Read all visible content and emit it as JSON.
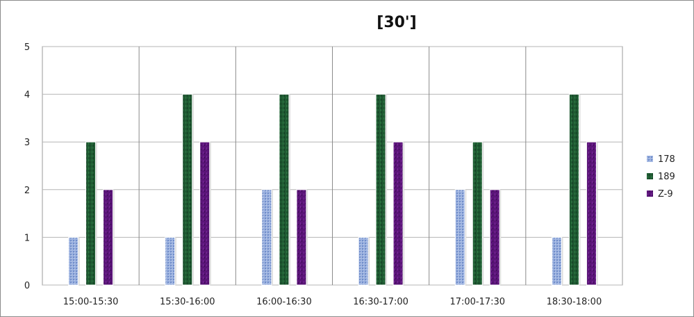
{
  "chart_data": {
    "type": "bar",
    "title": "[30']",
    "categories": [
      "15:00-15:30",
      "15:30-16:00",
      "16:00-16:30",
      "16:30-17:00",
      "17:00-17:30",
      "18:30-18:00"
    ],
    "series": [
      {
        "name": "178",
        "values": [
          1,
          1,
          2,
          1,
          2,
          1
        ],
        "color": "#8fa8d8"
      },
      {
        "name": "189",
        "values": [
          3,
          4,
          4,
          4,
          3,
          4
        ],
        "color": "#1f5a32"
      },
      {
        "name": "Z-9",
        "values": [
          2,
          3,
          2,
          3,
          2,
          3
        ],
        "color": "#5a1478"
      }
    ],
    "ylim": [
      0,
      5
    ],
    "yticks": [
      0,
      1,
      2,
      3,
      4,
      5
    ],
    "grid": true,
    "legend_position": "right"
  }
}
